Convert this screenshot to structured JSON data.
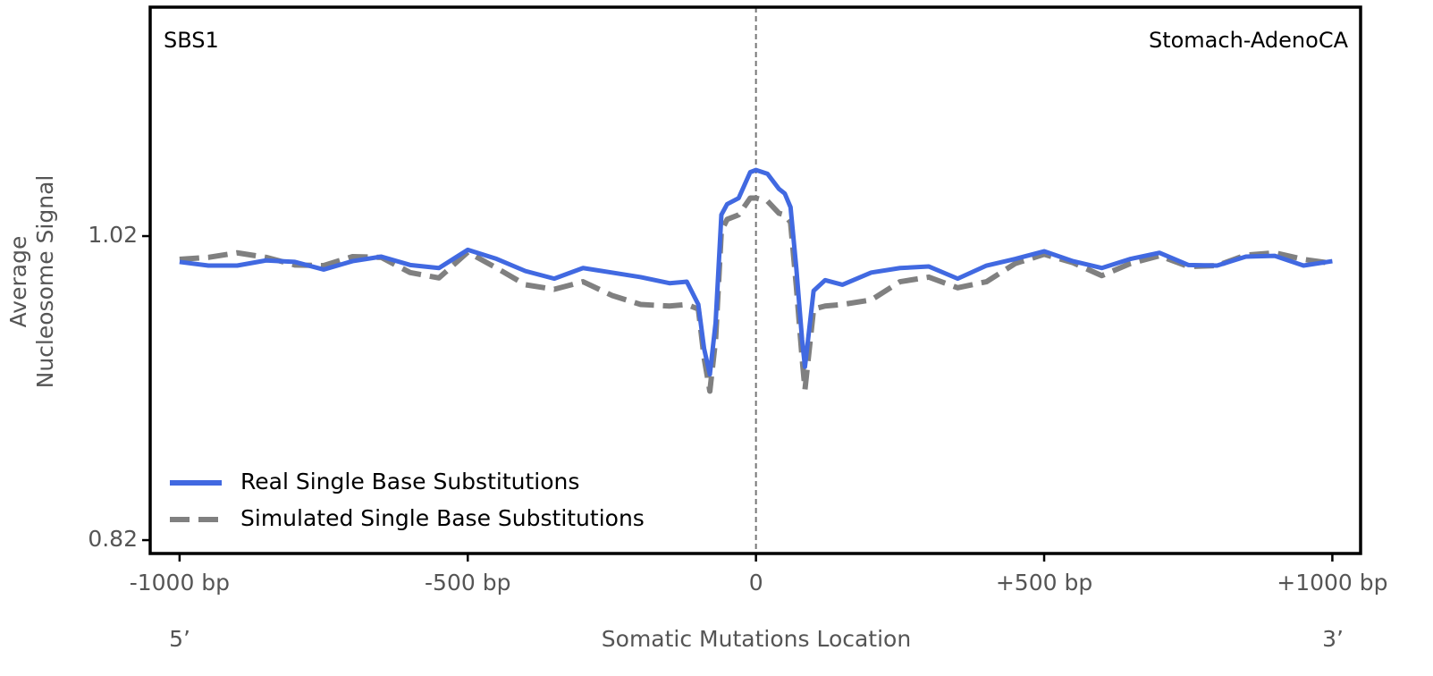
{
  "chart_data": {
    "type": "line",
    "xlabel": "Somatic Mutations Location",
    "ylabel": [
      "Average",
      "Nucleosome Signal"
    ],
    "annotations": {
      "signature": "SBS1",
      "cancer_type": "Stomach-AdenoCA",
      "five_prime": "5’",
      "three_prime": "3’"
    },
    "x": [
      -1000,
      -950,
      -900,
      -850,
      -800,
      -750,
      -700,
      -650,
      -600,
      -550,
      -500,
      -450,
      -400,
      -350,
      -300,
      -250,
      -200,
      -150,
      -120,
      -100,
      -90,
      -80,
      -70,
      -60,
      -50,
      -30,
      -10,
      0,
      20,
      40,
      50,
      60,
      70,
      80,
      85,
      100,
      120,
      150,
      200,
      250,
      300,
      350,
      400,
      450,
      500,
      550,
      600,
      650,
      700,
      750,
      800,
      850,
      900,
      950,
      1000
    ],
    "series": [
      {
        "name": "Real Single Base Substitutions",
        "color": "#4169e1",
        "linestyle": "solid",
        "values": [
          1.003,
          1.0006,
          1.0006,
          1.004,
          1.003,
          0.998,
          1.0035,
          1.0065,
          1.001,
          0.999,
          1.011,
          1.005,
          0.997,
          0.992,
          0.999,
          0.996,
          0.993,
          0.989,
          0.99,
          0.975,
          0.946,
          0.929,
          0.963,
          1.034,
          1.041,
          1.045,
          1.062,
          1.0635,
          1.061,
          1.051,
          1.048,
          1.039,
          0.999,
          0.952,
          0.934,
          0.984,
          0.991,
          0.988,
          0.996,
          0.999,
          1.0,
          0.992,
          1.0006,
          1.005,
          1.01,
          1.0035,
          0.999,
          1.005,
          1.009,
          1.001,
          1.0006,
          1.0065,
          1.007,
          1.0006,
          1.0035
        ]
      },
      {
        "name": "Simulated Single Base Substitutions",
        "color": "#808080",
        "linestyle": "dashed",
        "values": [
          1.0047,
          1.006,
          1.009,
          1.006,
          1.001,
          1.0006,
          1.0065,
          1.006,
          0.996,
          0.9925,
          1.0094,
          0.999,
          0.988,
          0.985,
          0.99,
          0.981,
          0.975,
          0.974,
          0.975,
          0.972,
          0.94,
          0.918,
          0.952,
          1.0235,
          1.031,
          1.034,
          1.045,
          1.045,
          1.043,
          1.035,
          1.034,
          1.029,
          0.987,
          0.94,
          0.919,
          0.972,
          0.974,
          0.975,
          0.978,
          0.99,
          0.993,
          0.986,
          0.99,
          1.002,
          1.008,
          1.0025,
          0.994,
          1.002,
          1.007,
          1.0,
          1.0006,
          1.0075,
          1.009,
          1.0047,
          1.002
        ]
      }
    ],
    "xlim": [
      -1051,
      1049
    ],
    "ylim": [
      0.8112,
      1.1706
    ],
    "xticks": [
      {
        "value": -1000,
        "label": "-1000 bp"
      },
      {
        "value": -500,
        "label": "-500 bp"
      },
      0,
      {
        "value": 500,
        "label": "+500 bp"
      },
      {
        "value": 1000,
        "label": "+1000 bp"
      }
    ],
    "yticks": [
      0.82,
      1.02
    ],
    "vline": 0,
    "grid": false,
    "legend": "lower left"
  }
}
